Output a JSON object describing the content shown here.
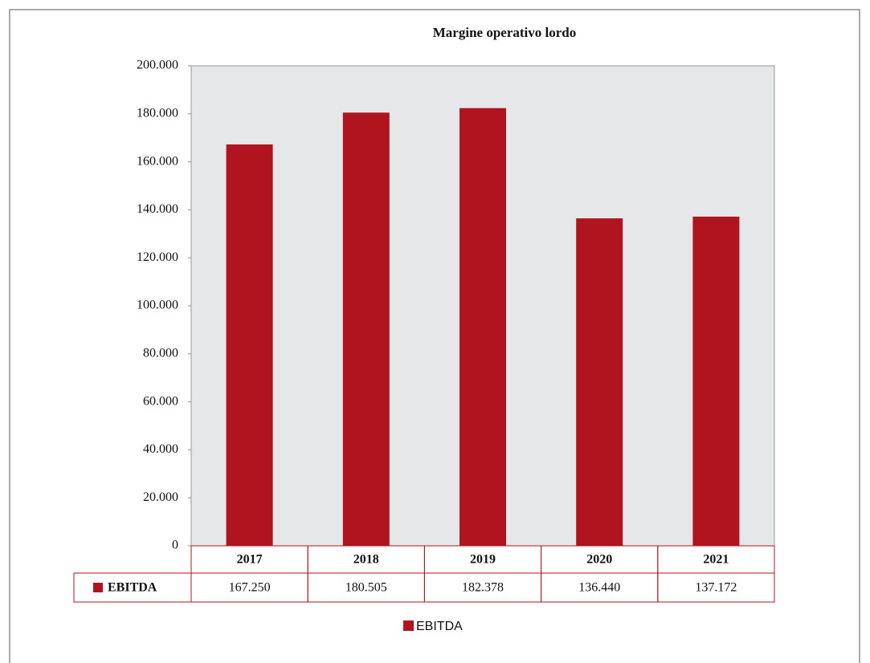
{
  "chart_data": {
    "type": "bar",
    "title": "Margine operativo lordo",
    "categories": [
      "2017",
      "2018",
      "2019",
      "2020",
      "2021"
    ],
    "series": [
      {
        "name": "EBITDA",
        "color": "#b0151f",
        "values": [
          167250,
          180505,
          182378,
          136440,
          137172
        ],
        "value_labels": [
          "167.250",
          "180.505",
          "182.378",
          "136.440",
          "137.172"
        ]
      }
    ],
    "ylim": [
      0,
      200000
    ],
    "yticks": [
      0,
      {
        "value": 20000,
        "label": "20.000"
      },
      {
        "value": 40000,
        "label": "40.000"
      },
      {
        "value": 60000,
        "label": "60.000"
      },
      {
        "value": 80000,
        "label": "80.000"
      },
      {
        "value": 100000,
        "label": "100.000"
      },
      {
        "value": 120000,
        "label": "120.000"
      },
      {
        "value": 140000,
        "label": "140.000"
      },
      {
        "value": 160000,
        "label": "160.000"
      },
      {
        "value": 180000,
        "label": "180.000"
      },
      {
        "value": 200000,
        "label": "200.000"
      }
    ],
    "grid": false,
    "legend": "bottom"
  }
}
